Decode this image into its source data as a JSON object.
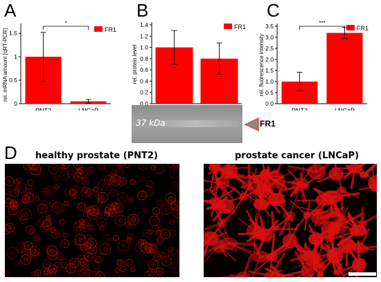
{
  "panels": {
    "a": {
      "label": "A"
    },
    "b": {
      "label": "B"
    },
    "c": {
      "label": "C"
    },
    "d": {
      "label": "D"
    }
  },
  "colors": {
    "bar": "#ff0000",
    "signal": "#d81010"
  },
  "chart_data": [
    {
      "type": "bar",
      "categories": [
        "PNT2",
        "LNCaP"
      ],
      "series": [
        {
          "name": "FR1",
          "values": [
            1.0,
            0.05
          ],
          "errors": [
            0.52,
            0.04
          ]
        }
      ],
      "ylabel": "rel. mRNA amount [qRT-PCR]",
      "ylim": [
        0,
        1.65
      ],
      "yticks": [
        0,
        0.5,
        1,
        1.5
      ],
      "ytick_labels": [
        "0",
        "0.5",
        "1",
        "1.5"
      ],
      "significance": "*"
    },
    {
      "type": "bar",
      "categories": [
        "PNT2",
        "LNCaP"
      ],
      "series": [
        {
          "name": "FR1",
          "values": [
            1.0,
            0.8
          ],
          "errors": [
            0.3,
            0.28
          ]
        }
      ],
      "ylabel": "rel. protein level",
      "ylim": [
        0,
        1.4
      ],
      "yticks": [
        0,
        0.2,
        0.4,
        0.6,
        0.8,
        1.0,
        1.2,
        1.4
      ],
      "ytick_labels": [
        "0.0",
        "0.2",
        "0.4",
        "0.6",
        "0.8",
        "1.0",
        "1.2",
        "1.4"
      ]
    },
    {
      "type": "bar",
      "categories": [
        "PNT2",
        "LNCaP"
      ],
      "series": [
        {
          "name": "FR1",
          "values": [
            1.0,
            3.2
          ],
          "errors": [
            0.42,
            0.25
          ]
        }
      ],
      "ylabel": "rel. fluorescence intensity",
      "ylim": [
        0,
        3.5
      ],
      "yticks": [
        0,
        0.5,
        1,
        1.5,
        2,
        2.5,
        3,
        3.5
      ],
      "ytick_labels": [
        "0.0",
        "0.5",
        "1.0",
        "1.5",
        "2.0",
        "2.5",
        "3.0",
        "3.5"
      ],
      "significance": "***"
    }
  ],
  "blot": {
    "size_label": "37 kDa",
    "band_label": "FR1"
  },
  "micrographs": {
    "left_title": "healthy prostate (PNT2)",
    "right_title": "prostate cancer (LNCaP)"
  }
}
